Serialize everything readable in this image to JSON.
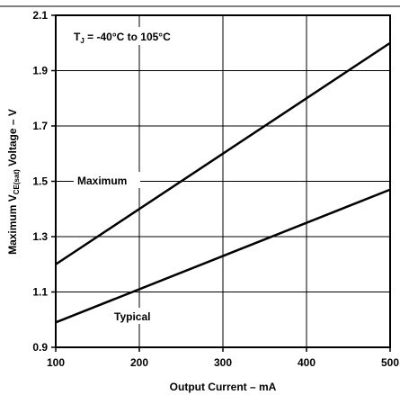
{
  "chart_data": {
    "type": "line",
    "xlabel": "Output Current – mA",
    "ylabel": {
      "prefix": "Maximum V",
      "subscript": "CE(sat)",
      "suffix": " Voltage – V"
    },
    "xlim": [
      100,
      500
    ],
    "ylim": [
      0.9,
      2.1
    ],
    "x_ticks": [
      "100",
      "200",
      "300",
      "400",
      "500"
    ],
    "y_ticks": [
      "0.9",
      "1.1",
      "1.3",
      "1.5",
      "1.7",
      "1.9",
      "2.1"
    ],
    "grid": true,
    "annotation": {
      "prefix": "T",
      "subscript": "J",
      "suffix": " = -40°C to 105°C"
    },
    "series": [
      {
        "name": "Maximum",
        "x": [
          100,
          500
        ],
        "y": [
          1.2,
          2.0
        ],
        "color": "#000000"
      },
      {
        "name": "Typical",
        "x": [
          100,
          500
        ],
        "y": [
          0.99,
          1.47
        ],
        "color": "#000000"
      }
    ]
  }
}
